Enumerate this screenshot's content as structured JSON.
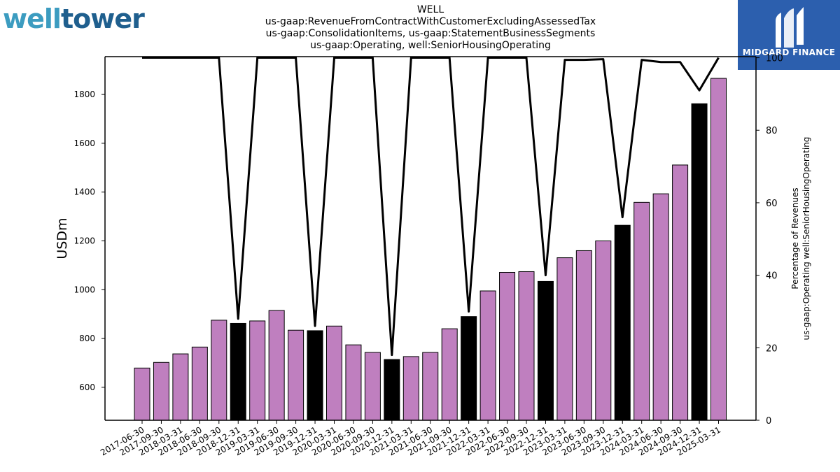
{
  "logo_left": {
    "part1": "well",
    "part2": "tower"
  },
  "logo_right": {
    "label": "MIDGARD FINANCE"
  },
  "chart_data": {
    "type": "bar",
    "title": [
      "WELL",
      "us-gaap:RevenueFromContractWithCustomerExcludingAssessedTax",
      "us-gaap:ConsolidationItems, us-gaap:StatementBusinessSegments",
      "us-gaap:Operating, well:SeniorHousingOperating"
    ],
    "ylabel": "USDm",
    "ylabel_right": [
      "Percentage of Revenues",
      "us-gaap:Operating well:SeniorHousingOperating"
    ],
    "categories": [
      "2017-06-30",
      "2017-09-30",
      "2018-03-31",
      "2018-06-30",
      "2018-09-30",
      "2018-12-31",
      "2019-03-31",
      "2019-06-30",
      "2019-09-30",
      "2019-12-31",
      "2020-03-31",
      "2020-06-30",
      "2020-09-30",
      "2020-12-31",
      "2021-03-31",
      "2021-06-30",
      "2021-09-30",
      "2021-12-31",
      "2022-03-31",
      "2022-06-30",
      "2022-09-30",
      "2022-12-31",
      "2023-03-31",
      "2023-06-30",
      "2023-09-30",
      "2023-12-31",
      "2024-03-31",
      "2024-06-30",
      "2024-09-30",
      "2024-12-31",
      "2025-03-31"
    ],
    "values": [
      679,
      702,
      737,
      765,
      875,
      862,
      872,
      915,
      834,
      832,
      851,
      774,
      743,
      714,
      726,
      743,
      840,
      890,
      995,
      1071,
      1074,
      1034,
      1131,
      1160,
      1200,
      1264,
      1358,
      1393,
      1511,
      1762,
      1866
    ],
    "highlight": [
      false,
      false,
      false,
      false,
      false,
      true,
      false,
      false,
      false,
      true,
      false,
      false,
      false,
      true,
      false,
      false,
      false,
      true,
      false,
      false,
      false,
      true,
      false,
      false,
      false,
      true,
      false,
      false,
      false,
      true,
      false
    ],
    "pct_series": {
      "values": [
        100,
        100,
        100,
        100,
        100,
        28,
        100,
        100,
        100,
        26,
        100,
        100,
        100,
        18,
        100,
        100,
        100,
        30,
        100,
        100,
        100,
        40,
        99.4,
        99.4,
        99.6,
        56,
        99.4,
        98.8,
        98.8,
        91,
        100
      ]
    },
    "ylim": [
      465,
      1955
    ],
    "yticks": [
      600,
      800,
      1000,
      1200,
      1400,
      1600,
      1800
    ],
    "ylim_right": [
      0,
      100.3
    ],
    "yticks_right": [
      0,
      20,
      40,
      60,
      80,
      100
    ],
    "colors": {
      "bar": "#bf7fbf",
      "highlight_bar": "#000000",
      "line": "#000000"
    }
  }
}
